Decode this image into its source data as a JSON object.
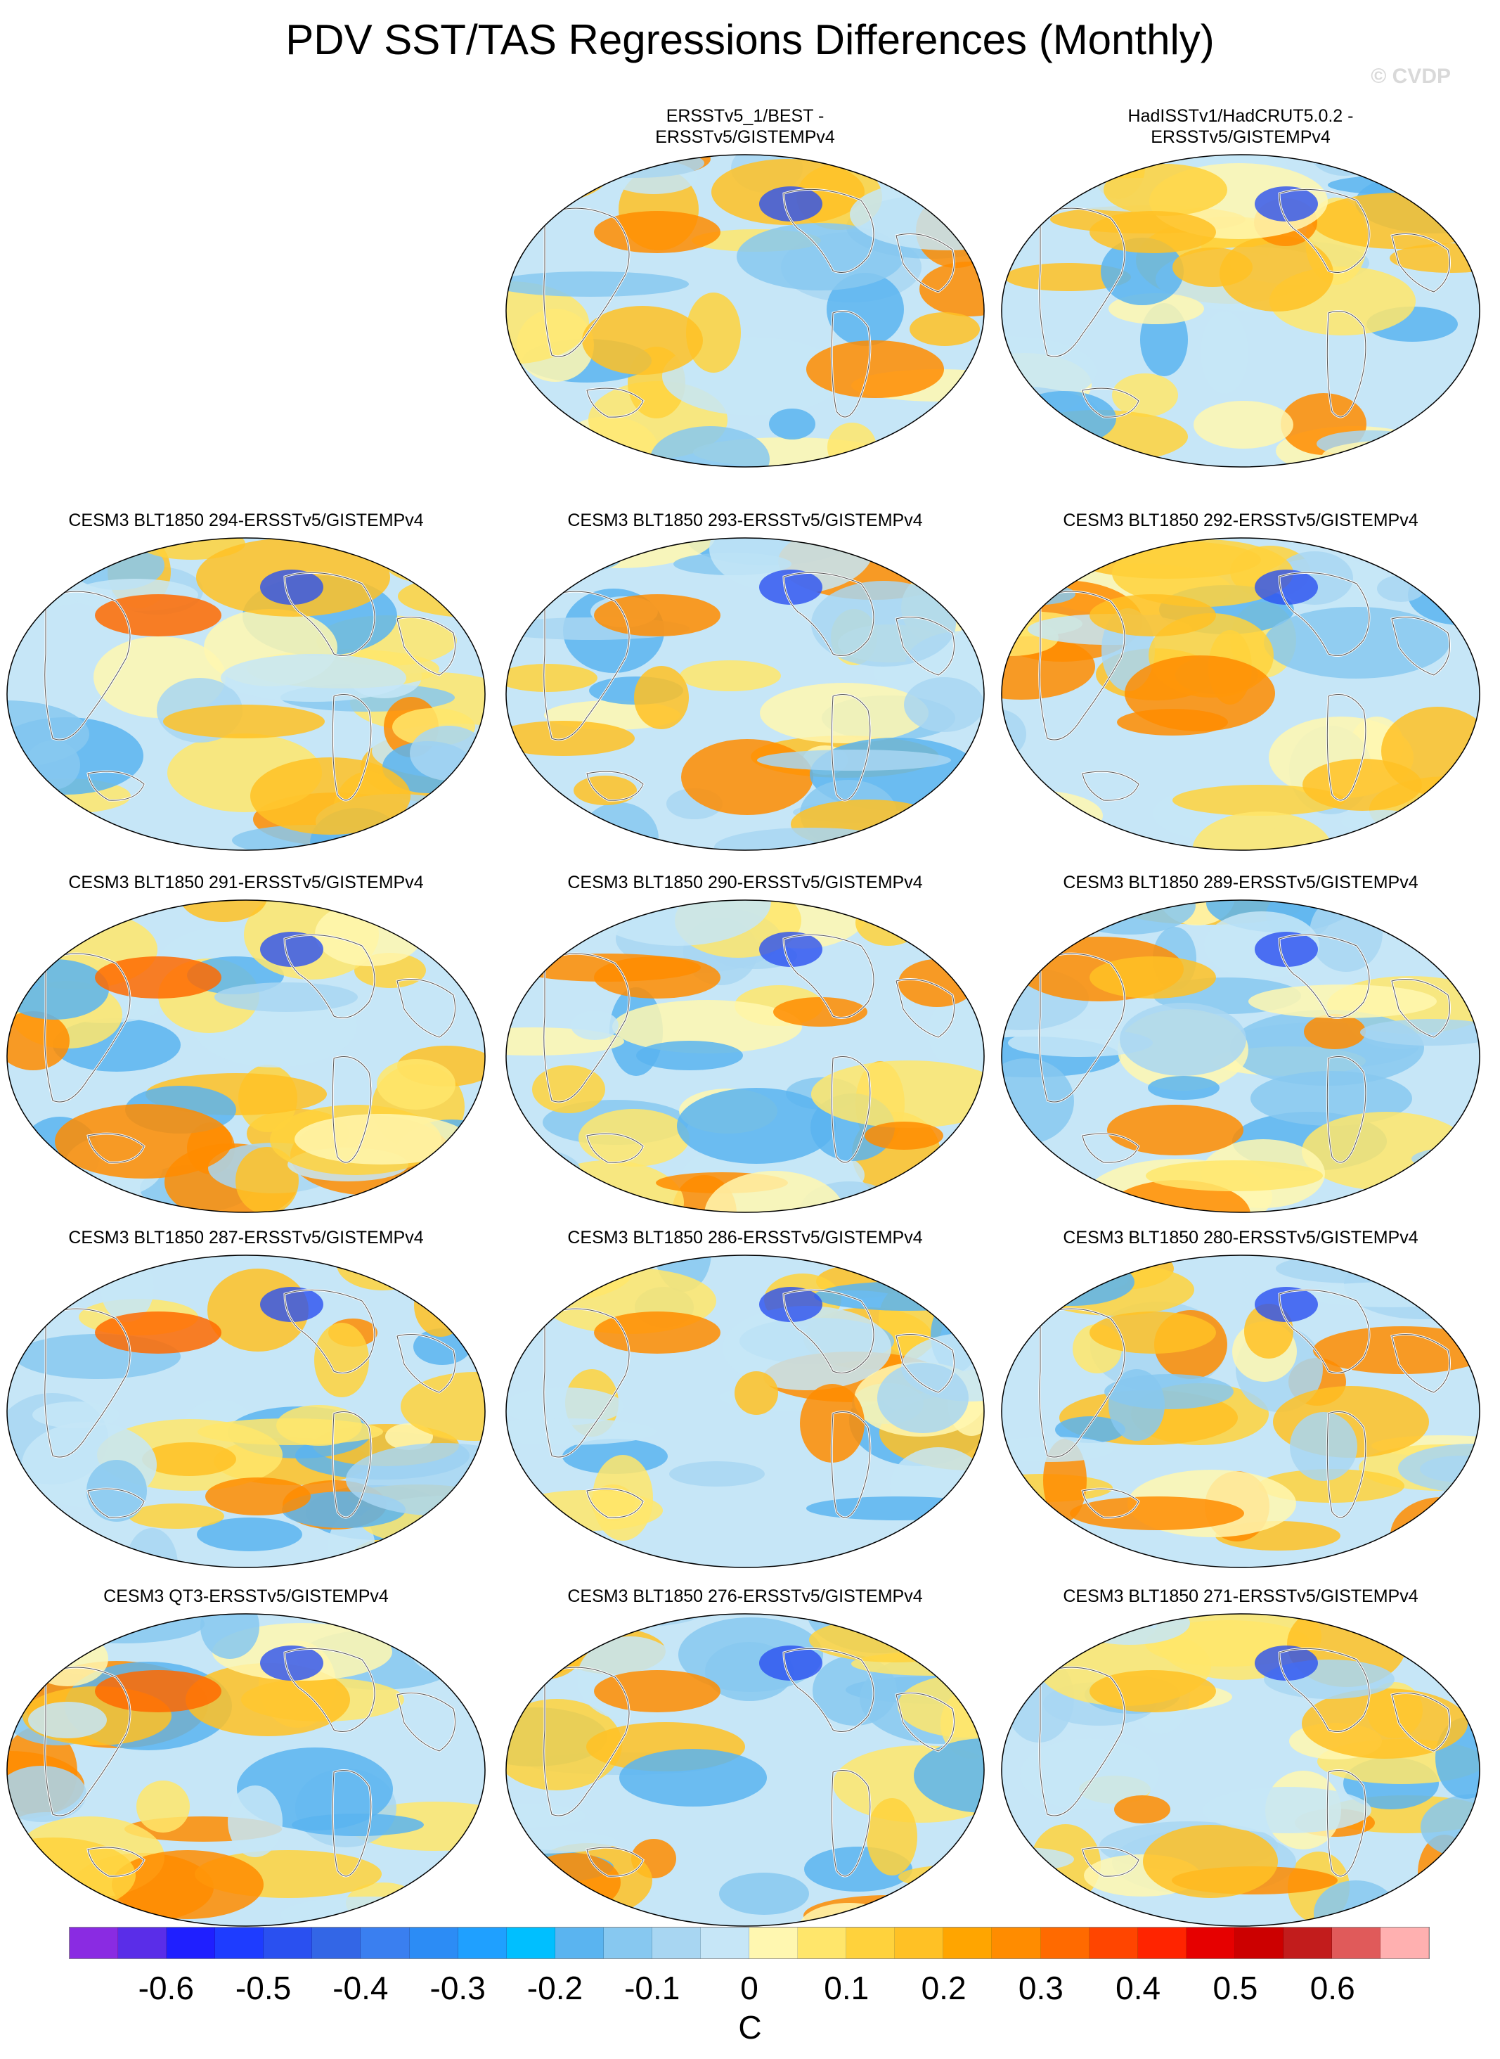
{
  "header": {
    "title": "PDV SST/TAS Regressions Differences (Monthly)",
    "copyright": "© CVDP"
  },
  "panels": [
    {
      "title": "ERSSTv5_1/BEST -\nERSSTv5/GISTEMPv4"
    },
    {
      "title": "HadISSTv1/HadCRUT5.0.2 -\nERSSTv5/GISTEMPv4"
    },
    {
      "title": "CESM3 BLT1850 294-ERSSTv5/GISTEMPv4"
    },
    {
      "title": "CESM3 BLT1850 293-ERSSTv5/GISTEMPv4"
    },
    {
      "title": "CESM3 BLT1850 292-ERSSTv5/GISTEMPv4"
    },
    {
      "title": "CESM3 BLT1850 291-ERSSTv5/GISTEMPv4"
    },
    {
      "title": "CESM3 BLT1850 290-ERSSTv5/GISTEMPv4"
    },
    {
      "title": "CESM3 BLT1850 289-ERSSTv5/GISTEMPv4"
    },
    {
      "title": "CESM3 BLT1850 287-ERSSTv5/GISTEMPv4"
    },
    {
      "title": "CESM3 BLT1850 286-ERSSTv5/GISTEMPv4"
    },
    {
      "title": "CESM3 BLT1850 280-ERSSTv5/GISTEMPv4"
    },
    {
      "title": "CESM3 QT3-ERSSTv5/GISTEMPv4"
    },
    {
      "title": "CESM3 BLT1850 276-ERSSTv5/GISTEMPv4"
    },
    {
      "title": "CESM3 BLT1850 271-ERSSTv5/GISTEMPv4"
    }
  ],
  "colorbar": {
    "units": "C",
    "tick_labels": [
      "-0.6",
      "-0.5",
      "-0.4",
      "-0.3",
      "-0.2",
      "-0.1",
      "0",
      "0.1",
      "0.2",
      "0.3",
      "0.4",
      "0.5",
      "0.6"
    ],
    "colors": [
      "#8a2be2",
      "#5a2de8",
      "#1f1fff",
      "#1e3cff",
      "#2a50f0",
      "#3366e6",
      "#3a7ff0",
      "#2c8cf5",
      "#1fa0ff",
      "#00bfff",
      "#5ab4f0",
      "#87c8f0",
      "#a8d6f2",
      "#c6e6f7",
      "#fff7b0",
      "#ffe66b",
      "#ffd23c",
      "#ffc125",
      "#ffa500",
      "#ff8c00",
      "#ff6a00",
      "#ff4500",
      "#ff2400",
      "#e60000",
      "#cc0000",
      "#c21c1c",
      "#e05a5a",
      "#ffb0b0"
    ]
  }
}
